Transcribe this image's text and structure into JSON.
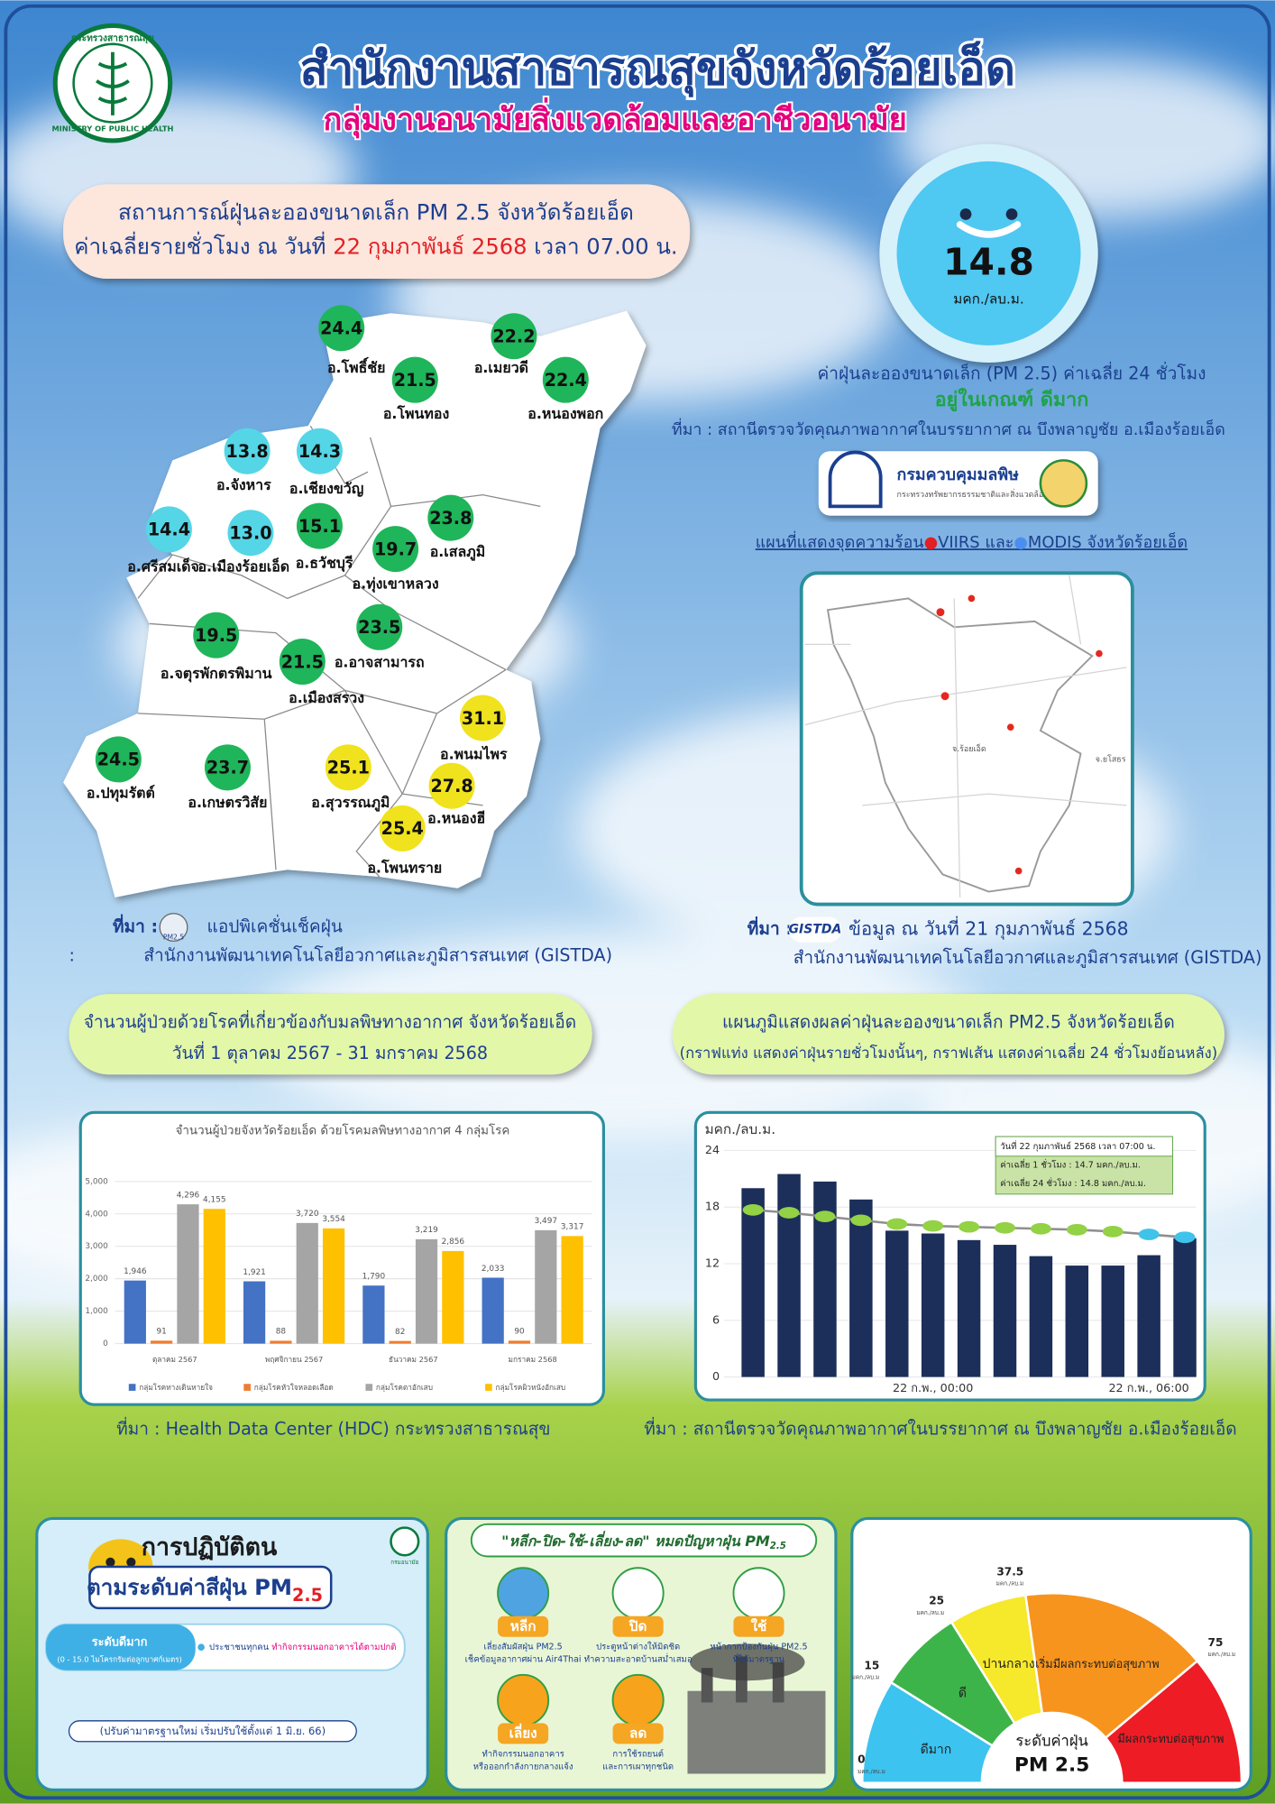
{
  "header": {
    "title": "สำนักงานสาธารณสุขจังหวัดร้อยเอ็ด",
    "subtitle": "กลุ่มงานอนามัยสิ่งแวดล้อมและอาชีวอนามัย",
    "logo_top": "กระทรวงสาธารณสุข",
    "logo_bottom": "MINISTRY OF PUBLIC HEALTH"
  },
  "situation": {
    "line1": "สถานการณ์ฝุ่นละอองขนาดเล็ก PM 2.5 จังหวัดร้อยเอ็ด",
    "line2_start": "ค่าเฉลี่ยรายชั่วโมง ณ วันที่",
    "date": "22 กุมภาพันธ์ 2568",
    "line2_end": "เวลา 07.00 น."
  },
  "average": {
    "value": 14.8,
    "unit": "มคก./ลบ.ม.",
    "caption": "ค่าฝุ่นละอองขนาดเล็ก (PM 2.5) ค่าเฉลี่ย 24 ชั่วโมง",
    "level": "อยู่ในเกณฑ์ ดีมาก",
    "source": "ที่มา : สถานีตรวจวัดคุณภาพอากาศในบรรยากาศ ณ บึงพลาญชัย อ.เมืองร้อยเอ็ด"
  },
  "pcd_logo": {
    "name": "กรมควบคุมมลพิษ",
    "sub": "กระทรวงทรัพยากรธรรมชาติและสิ่งแวดล้อม"
  },
  "hotspot_map": {
    "title_start": "แผนที่แสดงจุดความร้อน",
    "viirs": "VIIRS",
    "and": "และ",
    "modis": "MODIS",
    "title_end": "จังหวัดร้อยเอ็ด",
    "labels": [
      "จ.ร้อยเอ็ด",
      "จ.ยโสธร"
    ],
    "source_prefix": "ที่มา :",
    "source_logo": "GISTDA",
    "source_line1": "ข้อมูล ณ วันที่ 21 กุมภาพันธ์ 2568",
    "source_line2": "สำนักงานพัฒนาเทคโนโลยีอวกาศและภูมิสารสนเทศ (GISTDA)"
  },
  "district_map": {
    "names": [
      "อ.โพธิ์ชัย",
      "อ.เมยวดี",
      "อ.โพนทอง",
      "อ.หนองพอก",
      "อ.จังหาร",
      "อ.เชียงขวัญ",
      "อ.เสลภูมิ",
      "อ.ศรีสมเด็จ",
      "อ.เมืองร้อยเอ็ด",
      "อ.ธวัชบุรี",
      "อ.ทุ่งเขาหลวง",
      "อ.อาจสามารถ",
      "อ.จตุรพักตรพิมาน",
      "อ.เมืองสรวง",
      "อ.พนมไพร",
      "อ.ปทุมรัตต์",
      "อ.เกษตรวิสัย",
      "อ.สุวรรณภูมิ",
      "อ.หนองฮี",
      "อ.โพนทราย"
    ],
    "values": [
      24.4,
      22.2,
      21.5,
      22.4,
      13.8,
      14.3,
      23.8,
      14.4,
      13,
      15.1,
      19.7,
      23.5,
      19.5,
      21.5,
      31.1,
      24.5,
      23.7,
      25.1,
      27.8,
      25.4
    ],
    "value_labels": [
      "24.4",
      "22.2",
      "21.5",
      "22.4",
      "13.8",
      "14.3",
      "23.8",
      "14.4",
      "13.0",
      "15.1",
      "19.7",
      "23.5",
      "19.5",
      "21.5",
      "31.1",
      "24.5",
      "23.7",
      "25.1",
      "27.8",
      "25.4"
    ],
    "colors": [
      "#1fb55a",
      "#1fb55a",
      "#1fb55a",
      "#1fb55a",
      "#54d6e6",
      "#54d6e6",
      "#1fb55a",
      "#54d6e6",
      "#54d6e6",
      "#1fb55a",
      "#1fb55a",
      "#1fb55a",
      "#1fb55a",
      "#1fb55a",
      "#f0e21c",
      "#1fb55a",
      "#1fb55a",
      "#f0e21c",
      "#f0e21c",
      "#f0e21c"
    ],
    "source_prefix": "ที่มา :",
    "app_logo": "PM2.5",
    "source_line1": "แอปพิเคชั่นเช็คฝุ่น",
    "source_colon": ":",
    "source_line2": "สำนักงานพัฒนาเทคโนโลยีอวกาศและภูมิสารสนเทศ (GISTDA)"
  },
  "patients_heading": {
    "line1": "จำนวนผู้ป่วยด้วยโรคที่เกี่ยวข้องกับมลพิษทางอากาศ จังหวัดร้อยเอ็ด",
    "line2": "วันที่ 1 ตุลาคม 2567 - 31 มกราคม 2568"
  },
  "chart_heading": {
    "line1": "แผนภูมิแสดงผลค่าฝุ่นละอองขนาดเล็ก PM2.5 จังหวัดร้อยเอ็ด",
    "line2": "(กราฟแท่ง แสดงค่าฝุ่นรายชั่วโมงนั้นๆ, กราฟเส้น แสดงค่าเฉลี่ย 24 ชั่วโมงย้อนหลัง)"
  },
  "chart_data": [
    {
      "type": "bar",
      "title": "จำนวนผู้ป่วยจังหวัดร้อยเอ็ด ด้วยโรคมลพิษทางอากาศ 4 กลุ่มโรค",
      "categories": [
        "ตุลาคม 2567",
        "พฤศจิกายน 2567",
        "ธันวาคม 2567",
        "มกราคม 2568"
      ],
      "series": [
        {
          "name": "กลุ่มโรคทางเดินหายใจ",
          "color": "#4472c4",
          "values": [
            1946,
            1921,
            1790,
            2033
          ],
          "value_labels": [
            "1,946",
            "1,921",
            "1,790",
            "2,033"
          ]
        },
        {
          "name": "กลุ่มโรคหัวใจหลอดเลือด",
          "color": "#ed7d31",
          "values": [
            91,
            88,
            82,
            90
          ]
        },
        {
          "name": "กลุ่มโรคตาอักเสบ",
          "color": "#a5a5a5",
          "values": [
            4296,
            3720,
            3219,
            3497
          ],
          "value_labels": [
            "4,296",
            "3,720",
            "3,219",
            "3,497"
          ]
        },
        {
          "name": "กลุ่มโรคผิวหนังอักเสบ",
          "color": "#ffc000",
          "values": [
            4155,
            3554,
            2856,
            3317
          ],
          "value_labels": [
            "4,155",
            "3,554",
            "2,856",
            "3,317"
          ]
        }
      ],
      "ylim": [
        0,
        5000
      ],
      "yticks": [
        0,
        {
          "value": 1000,
          "label": "1,000"
        },
        {
          "value": 2000,
          "label": "2,000"
        },
        {
          "value": 3000,
          "label": "3,000"
        },
        {
          "value": 4000,
          "label": "4,000"
        },
        {
          "value": 5000,
          "label": "5,000"
        }
      ],
      "grid": true,
      "legend": "bottom"
    },
    {
      "type": "bar_line",
      "ylabel": "มคก./ลบ.ม.",
      "categories": [
        null,
        null,
        null,
        null,
        null,
        "22 ก.พ., 00:00",
        null,
        null,
        null,
        null,
        null,
        "22 ก.พ., 06:00",
        null
      ],
      "series": [
        {
          "name": "1 hr",
          "color": "#1c2f5a",
          "values": [
            20,
            21.5,
            20.7,
            18.8,
            15.5,
            15.2,
            14.5,
            14,
            12.8,
            11.8,
            11.8,
            12.9,
            14.7
          ]
        },
        {
          "name": "24 hr",
          "color": "#8f8f8f",
          "values": [
            17.7,
            17.4,
            17,
            16.6,
            16.2,
            16,
            15.9,
            15.8,
            15.7,
            15.6,
            15.4,
            15.1,
            14.8
          ],
          "marker_colors": [
            "#93d145",
            "#93d145",
            "#93d145",
            "#93d145",
            "#93d145",
            "#93d145",
            "#93d145",
            "#93d145",
            "#93d145",
            "#93d145",
            "#93d145",
            "#3fc3ea",
            "#3fc3ea"
          ]
        }
      ],
      "ylim": [
        0,
        24
      ],
      "yticks": [
        0,
        6,
        12,
        18,
        24
      ],
      "grid": true,
      "annotations": [
        "วันที่ 22 กุมภาพันธ์ 2568  เวลา 07:00 น.",
        "ค่าเฉลี่ย 1 ชั่วโมง  :  14.7 มคก./ลบ.ม.",
        "ค่าเฉลี่ย 24 ชั่วโมง : 14.8 มคก./ลบ.ม."
      ]
    }
  ],
  "patients_source": "ที่มา :  Health Data Center (HDC) กระทรวงสาธารณสุข",
  "hourly_source": "ที่มา : สถานีตรวจวัดคุณภาพอากาศในบรรยากาศ ณ บึงพลาญชัย อ.เมืองร้อยเอ็ด",
  "practice": {
    "title1": "การปฏิบัติตน",
    "title2": "ตามระดับค่าสีฝุ่น PM",
    "title_sub": "2.5",
    "logo": "กรมอนามัย",
    "level": "ระดับดีมาก",
    "level_range": "(0 - 15.0 ไมโครกรัมต่อลูกบาศก์เมตร)",
    "advice_who": "ประชาชนทุกคน",
    "advice": "ทำกิจกรรมนอกอาคารได้ตามปกติ",
    "note": "(ปรับค่ามาตรฐานใหม่ เริ่มปรับใช้ตั้งแต่ 1 มิ.ย. 66)"
  },
  "measures": {
    "title": "\"หลีก-ปิด-ใช้-เลี่ยง-ลด\" หมดปัญหาฝุ่น PM",
    "title_sub": "2.5",
    "items": [
      {
        "label": "หลีก",
        "text1": "เลี่ยงสัมผัสฝุ่น PM2.5",
        "text2": "เช็คข้อมูลอากาศผ่าน Air4Thai"
      },
      {
        "label": "ปิด",
        "text1": "ประตูหน้าต่างให้มิดชิด",
        "text2": "ทำความสะอาดบ้านสม่ำเสมอ"
      },
      {
        "label": "ใช้",
        "text1": "หน้ากากป้องกันฝุ่น PM2.5",
        "text2": "ที่ได้มาตรฐาน"
      },
      {
        "label": "เลี่ยง",
        "text1": "ทำกิจกรรมนอกอาคาร",
        "text2": "หรือออกกำลังกายกลางแจ้ง"
      },
      {
        "label": "ลด",
        "text1": "การใช้รถยนต์",
        "text2": "และการเผาทุกชนิด"
      }
    ]
  },
  "gauge": {
    "ticks": [
      0,
      15,
      25,
      37.5,
      75
    ],
    "tick_unit": "มคก./ลบ.ม",
    "levels": [
      "ดีมาก",
      "ดี",
      "ปานกลาง",
      "เริ่มมีผลกระทบต่อสุขภาพ",
      "มีผลกระทบต่อสุขภาพ"
    ],
    "colors": [
      "#3cc3f0",
      "#3cb44a",
      "#f6e82a",
      "#f7941d",
      "#ee1c25"
    ],
    "center1": "ระดับค่าฝุ่น",
    "center2": "PM 2.5"
  }
}
